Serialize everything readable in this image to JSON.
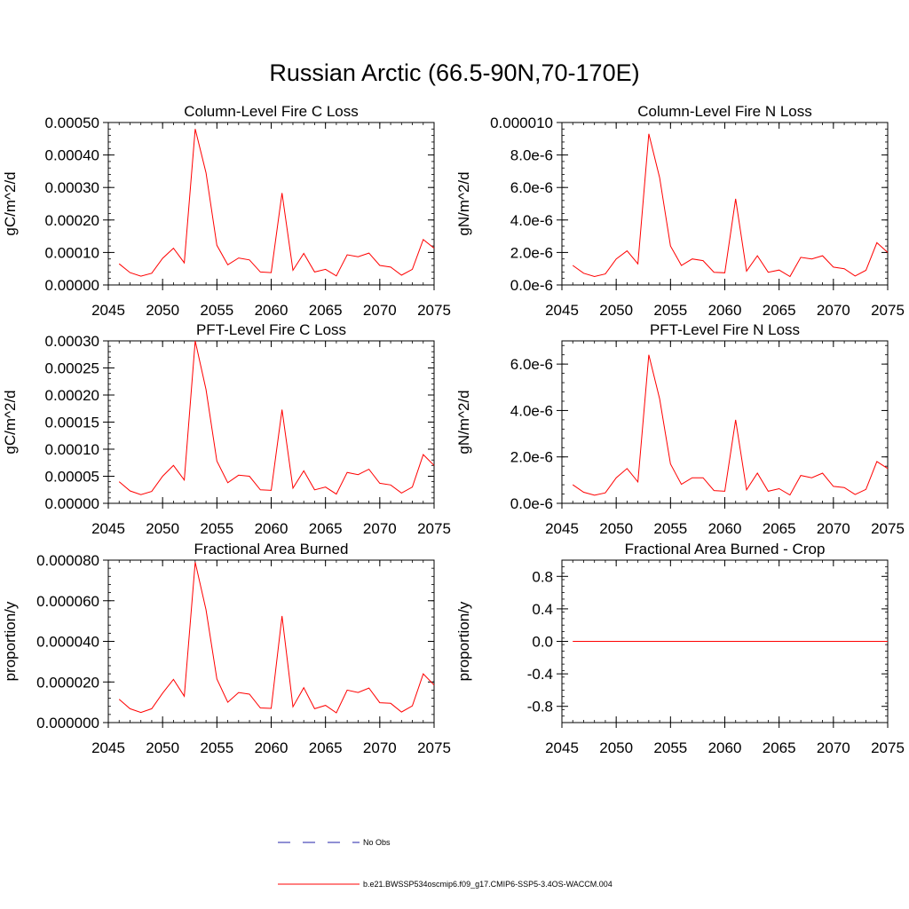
{
  "title": "Russian Arctic (66.5-90N,70-170E)",
  "colors": {
    "series": "#ff0000",
    "obs": "#2020aa",
    "axis": "#000000"
  },
  "legend": {
    "obs_label": "No Obs",
    "model_label": "b.e21.BWSSP534oscmip6.f09_g17.CMIP6-SSP5-3.4OS-WACCM.004"
  },
  "chart_data": [
    {
      "type": "line",
      "title": "Column-Level Fire C Loss",
      "ylabel": "gC/m^2/d",
      "xlim": [
        2045,
        2075
      ],
      "ylim": [
        0,
        0.0005
      ],
      "xticks": [
        2045,
        2050,
        2055,
        2060,
        2065,
        2070,
        2075
      ],
      "yticks": [
        0,
        0.0001,
        0.0002,
        0.0003,
        0.0004,
        0.0005
      ],
      "yticklabels": [
        "0.00000",
        "0.00010",
        "0.00020",
        "0.00030",
        "0.00040",
        "0.00050"
      ],
      "x": [
        2046,
        2047,
        2048,
        2049,
        2050,
        2051,
        2052,
        2053,
        2054,
        2055,
        2056,
        2057,
        2058,
        2059,
        2060,
        2061,
        2062,
        2063,
        2064,
        2065,
        2066,
        2067,
        2068,
        2069,
        2070,
        2071,
        2072,
        2073,
        2074,
        2075
      ],
      "values": [
        6.5e-05,
        3.8e-05,
        2.7e-05,
        3.6e-05,
        8.2e-05,
        0.000113,
        6.8e-05,
        0.00048,
        0.000345,
        0.000122,
        6.2e-05,
        8.3e-05,
        7.7e-05,
        4e-05,
        3.8e-05,
        0.000283,
        4.5e-05,
        9.7e-05,
        4e-05,
        4.8e-05,
        2.8e-05,
        9.3e-05,
        8.7e-05,
        9.8e-05,
        6e-05,
        5.5e-05,
        3e-05,
        4.8e-05,
        0.00014,
        0.000113
      ]
    },
    {
      "type": "line",
      "title": "Column-Level Fire N Loss",
      "ylabel": "gN/m^2/d",
      "xlim": [
        2045,
        2075
      ],
      "ylim": [
        0,
        1e-05
      ],
      "xticks": [
        2045,
        2050,
        2055,
        2060,
        2065,
        2070,
        2075
      ],
      "yticks": [
        0,
        2e-06,
        4e-06,
        6e-06,
        8e-06,
        1e-05
      ],
      "yticklabels": [
        "0.0e-6",
        "2.0e-6",
        "4.0e-6",
        "6.0e-6",
        "8.0e-6",
        "0.000010"
      ],
      "x": [
        2046,
        2047,
        2048,
        2049,
        2050,
        2051,
        2052,
        2053,
        2054,
        2055,
        2056,
        2057,
        2058,
        2059,
        2060,
        2061,
        2062,
        2063,
        2064,
        2065,
        2066,
        2067,
        2068,
        2069,
        2070,
        2071,
        2072,
        2073,
        2074,
        2075
      ],
      "values": [
        1.2e-06,
        7.2e-07,
        5.2e-07,
        6.8e-07,
        1.6e-06,
        2.1e-06,
        1.3e-06,
        9.3e-06,
        6.6e-06,
        2.4e-06,
        1.2e-06,
        1.6e-06,
        1.5e-06,
        7.8e-07,
        7.5e-07,
        5.3e-06,
        8.5e-07,
        1.8e-06,
        7.8e-07,
        9.2e-07,
        5.2e-07,
        1.7e-06,
        1.6e-06,
        1.8e-06,
        1.1e-06,
        1e-06,
        5.5e-07,
        9e-07,
        2.6e-06,
        2e-06
      ]
    },
    {
      "type": "line",
      "title": "PFT-Level Fire C Loss",
      "ylabel": "gC/m^2/d",
      "xlim": [
        2045,
        2075
      ],
      "ylim": [
        0,
        0.0003
      ],
      "xticks": [
        2045,
        2050,
        2055,
        2060,
        2065,
        2070,
        2075
      ],
      "yticks": [
        0,
        5e-05,
        0.0001,
        0.00015,
        0.0002,
        0.00025,
        0.0003
      ],
      "yticklabels": [
        "0.00000",
        "0.00005",
        "0.00010",
        "0.00015",
        "0.00020",
        "0.00025",
        "0.00030"
      ],
      "x": [
        2046,
        2047,
        2048,
        2049,
        2050,
        2051,
        2052,
        2053,
        2054,
        2055,
        2056,
        2057,
        2058,
        2059,
        2060,
        2061,
        2062,
        2063,
        2064,
        2065,
        2066,
        2067,
        2068,
        2069,
        2070,
        2071,
        2072,
        2073,
        2074,
        2075
      ],
      "values": [
        4e-05,
        2.3e-05,
        1.6e-05,
        2.2e-05,
        5e-05,
        7e-05,
        4.3e-05,
        0.0003,
        0.00021,
        7.8e-05,
        3.8e-05,
        5.2e-05,
        5e-05,
        2.5e-05,
        2.4e-05,
        0.000173,
        2.8e-05,
        6e-05,
        2.5e-05,
        3e-05,
        1.7e-05,
        5.7e-05,
        5.3e-05,
        6.3e-05,
        3.7e-05,
        3.4e-05,
        1.9e-05,
        3e-05,
        9e-05,
        7e-05
      ]
    },
    {
      "type": "line",
      "title": "PFT-Level Fire N Loss",
      "ylabel": "gN/m^2/d",
      "xlim": [
        2045,
        2075
      ],
      "ylim": [
        0,
        7e-06
      ],
      "xticks": [
        2045,
        2050,
        2055,
        2060,
        2065,
        2070,
        2075
      ],
      "yticks": [
        0,
        2e-06,
        4e-06,
        6e-06
      ],
      "yticklabels": [
        "0.0e-6",
        "2.0e-6",
        "4.0e-6",
        "6.0e-6"
      ],
      "x": [
        2046,
        2047,
        2048,
        2049,
        2050,
        2051,
        2052,
        2053,
        2054,
        2055,
        2056,
        2057,
        2058,
        2059,
        2060,
        2061,
        2062,
        2063,
        2064,
        2065,
        2066,
        2067,
        2068,
        2069,
        2070,
        2071,
        2072,
        2073,
        2074,
        2075
      ],
      "values": [
        8e-07,
        4.8e-07,
        3.5e-07,
        4.5e-07,
        1.1e-06,
        1.5e-06,
        9.2e-07,
        6.4e-06,
        4.5e-06,
        1.7e-06,
        8.2e-07,
        1.1e-06,
        1.1e-06,
        5.5e-07,
        5.2e-07,
        3.6e-06,
        5.8e-07,
        1.3e-06,
        5.2e-07,
        6.3e-07,
        3.6e-07,
        1.2e-06,
        1.1e-06,
        1.3e-06,
        7.3e-07,
        6.8e-07,
        3.8e-07,
        6e-07,
        1.8e-06,
        1.5e-06
      ]
    },
    {
      "type": "line",
      "title": "Fractional Area Burned",
      "ylabel": "proportion/y",
      "xlim": [
        2045,
        2075
      ],
      "ylim": [
        0,
        8e-05
      ],
      "xticks": [
        2045,
        2050,
        2055,
        2060,
        2065,
        2070,
        2075
      ],
      "yticks": [
        0,
        2e-05,
        4e-05,
        6e-05,
        8e-05
      ],
      "yticklabels": [
        "0.000000",
        "0.000020",
        "0.000040",
        "0.000060",
        "0.000080"
      ],
      "x": [
        2046,
        2047,
        2048,
        2049,
        2050,
        2051,
        2052,
        2053,
        2054,
        2055,
        2056,
        2057,
        2058,
        2059,
        2060,
        2061,
        2062,
        2063,
        2064,
        2065,
        2066,
        2067,
        2068,
        2069,
        2070,
        2071,
        2072,
        2073,
        2074,
        2075
      ],
      "values": [
        1.15e-05,
        6.8e-06,
        5e-06,
        6.8e-06,
        1.45e-05,
        2.13e-05,
        1.3e-05,
        7.9e-05,
        5.55e-05,
        2.15e-05,
        1e-05,
        1.48e-05,
        1.4e-05,
        7.2e-06,
        7e-06,
        5.25e-05,
        7.8e-06,
        1.72e-05,
        6.8e-06,
        8.5e-06,
        4.8e-06,
        1.6e-05,
        1.48e-05,
        1.7e-05,
        9.8e-06,
        9.5e-06,
        5.2e-06,
        8.2e-06,
        2.4e-05,
        1.85e-05
      ]
    },
    {
      "type": "line",
      "title": "Fractional Area Burned - Crop",
      "ylabel": "proportion/y",
      "xlim": [
        2045,
        2075
      ],
      "ylim": [
        -1,
        1
      ],
      "xticks": [
        2045,
        2050,
        2055,
        2060,
        2065,
        2070,
        2075
      ],
      "yticks": [
        -0.8,
        -0.4,
        0,
        0.4,
        0.8
      ],
      "yticklabels": [
        "-0.8",
        "-0.4",
        "0.0",
        "0.4",
        "0.8"
      ],
      "x": [
        2046,
        2047,
        2048,
        2049,
        2050,
        2051,
        2052,
        2053,
        2054,
        2055,
        2056,
        2057,
        2058,
        2059,
        2060,
        2061,
        2062,
        2063,
        2064,
        2065,
        2066,
        2067,
        2068,
        2069,
        2070,
        2071,
        2072,
        2073,
        2074,
        2075
      ],
      "values": [
        0,
        0,
        0,
        0,
        0,
        0,
        0,
        0,
        0,
        0,
        0,
        0,
        0,
        0,
        0,
        0,
        0,
        0,
        0,
        0,
        0,
        0,
        0,
        0,
        0,
        0,
        0,
        0,
        0,
        0
      ]
    }
  ]
}
